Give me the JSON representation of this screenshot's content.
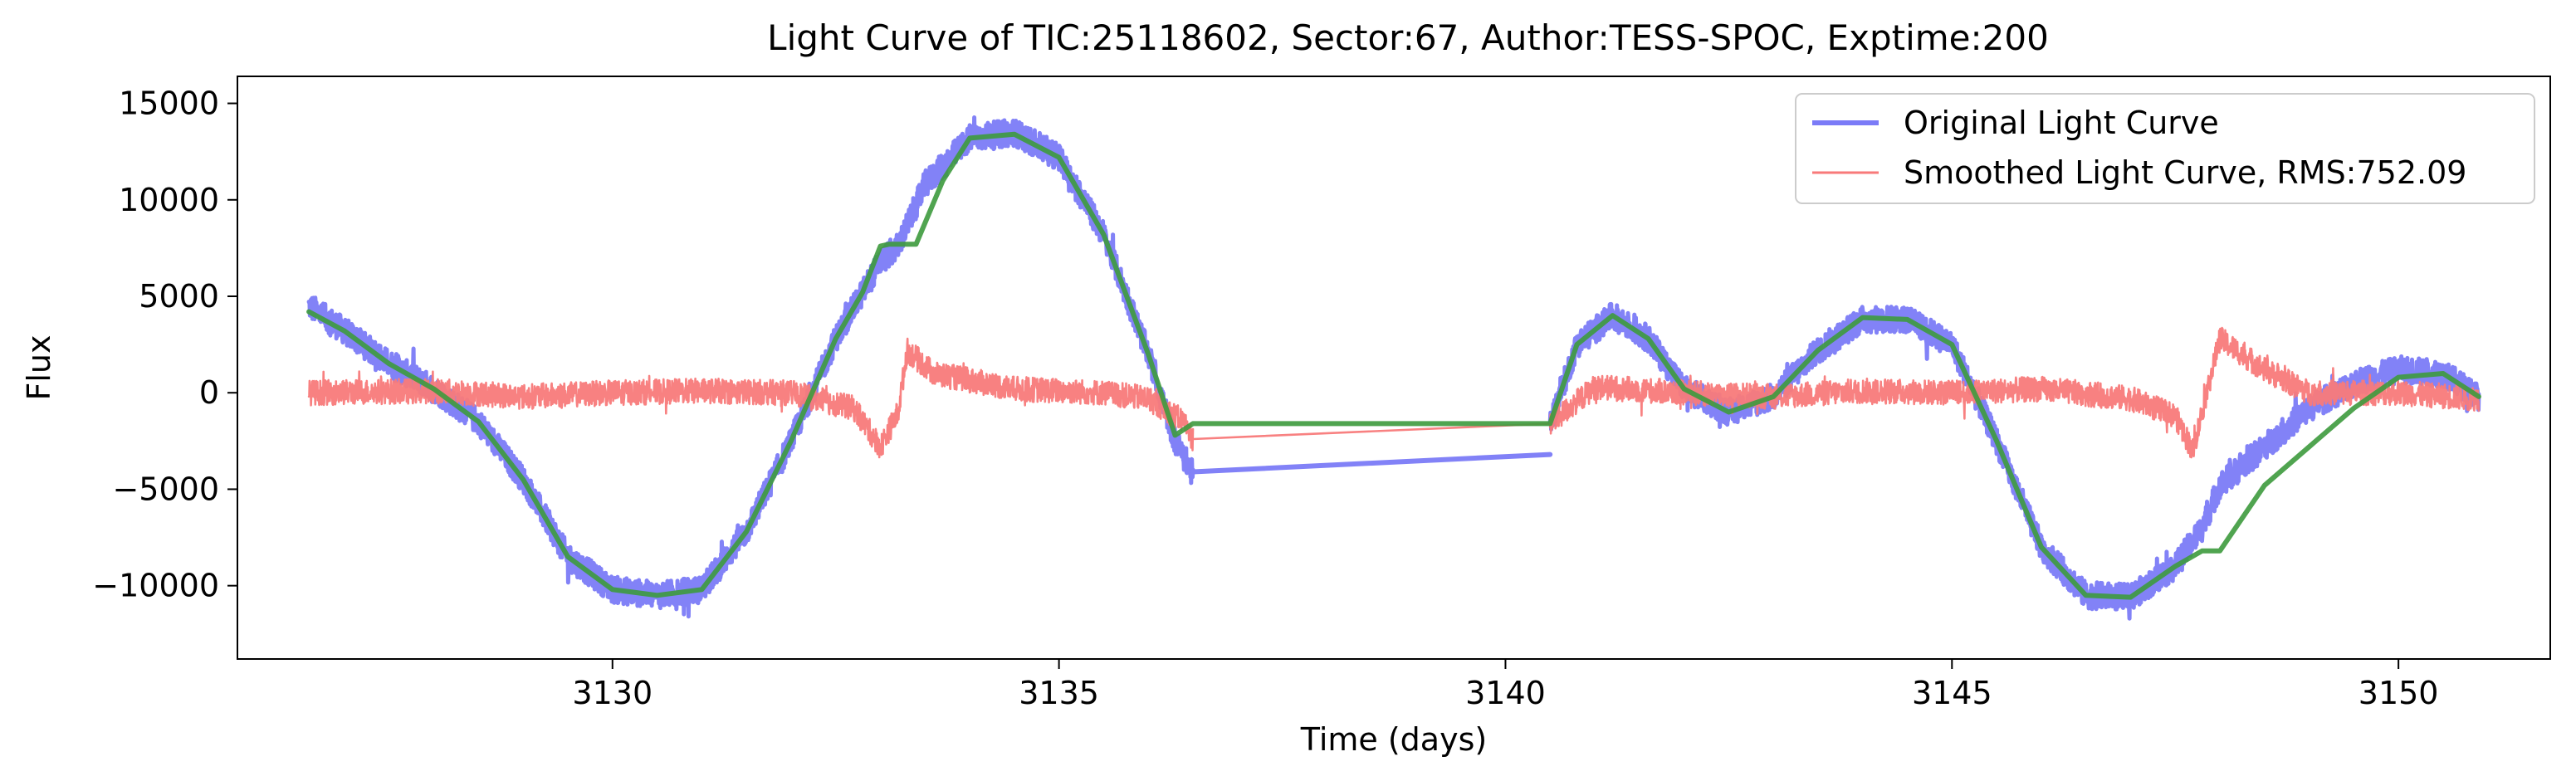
{
  "chart_data": {
    "type": "line",
    "title": "Light Curve of TIC:25118602, Sector:67, Author:TESS-SPOC, Exptime:200",
    "xlabel": "Time (days)",
    "ylabel": "Flux",
    "xlim": [
      3125.8,
      3151.7
    ],
    "ylim": [
      -13800,
      16400
    ],
    "xticks": [
      3130,
      3135,
      3140,
      3145,
      3150
    ],
    "yticks": [
      -10000,
      -5000,
      0,
      5000,
      10000,
      15000
    ],
    "ytick_labels": [
      "−10000",
      "−5000",
      "0",
      "5000",
      "10000",
      "15000"
    ],
    "grid": false,
    "legend_position": "top-right",
    "series": [
      {
        "name": "Original Light Curve",
        "color": "#7b7bf7",
        "noise_amplitude": 700,
        "segments": [
          {
            "x": [
              3126.6,
              3127.0,
              3127.5,
              3128.0,
              3128.5,
              3129.0,
              3129.5,
              3130.0,
              3130.5,
              3131.0,
              3131.5,
              3132.0,
              3132.5,
              3132.8,
              3133.0,
              3133.2,
              3133.5,
              3134.0,
              3134.5,
              3135.0,
              3135.5,
              3136.0,
              3136.3,
              3136.5
            ],
            "y": [
              4500,
              3200,
              1500,
              200,
              -1500,
              -4500,
              -8500,
              -10200,
              -10500,
              -10200,
              -7200,
              -2500,
              2800,
              5200,
              6800,
              7600,
              10800,
              13200,
              13500,
              12200,
              8200,
              2000,
              -2500,
              -4200
            ]
          },
          {
            "x": [
              3136.5,
              3140.5
            ],
            "y": [
              -4100,
              -3200
            ]
          },
          {
            "x": [
              3140.5,
              3140.8,
              3141.2,
              3141.6,
              3142.0,
              3142.5,
              3143.0,
              3143.5,
              3144.0,
              3144.5,
              3145.0,
              3145.5,
              3146.0,
              3146.5,
              3147.0,
              3147.5,
              3147.8,
              3148.0,
              3148.5,
              3149.0,
              3149.5,
              3150.0,
              3150.5,
              3150.9
            ],
            "y": [
              -1600,
              2500,
              4000,
              2800,
              200,
              -1000,
              -200,
              2200,
              3800,
              3800,
              2500,
              -2500,
              -8000,
              -10500,
              -10600,
              -9000,
              -7000,
              -4800,
              -2800,
              -800,
              500,
              1200,
              1000,
              -200
            ]
          }
        ]
      },
      {
        "name": "Smoothed Light Curve, RMS:752.09",
        "color": "#f87a7a",
        "noise_amplitude": 650,
        "segments": [
          {
            "x": [
              3126.6,
              3128.0,
              3129.0,
              3130.0,
              3131.0,
              3132.0,
              3132.7,
              3133.0,
              3133.2,
              3133.3,
              3133.6,
              3134.5,
              3135.5,
              3136.0,
              3136.4,
              3136.5
            ],
            "y": [
              0,
              100,
              -200,
              0,
              100,
              0,
              -800,
              -2800,
              -1000,
              2200,
              1000,
              200,
              0,
              -300,
              -1500,
              -2400
            ]
          },
          {
            "x": [
              3136.5,
              3140.5
            ],
            "y": [
              -2400,
              -1600
            ]
          },
          {
            "x": [
              3140.5,
              3141.0,
              3142.0,
              3143.0,
              3144.0,
              3145.0,
              3146.0,
              3147.0,
              3147.5,
              3147.7,
              3147.8,
              3148.0,
              3148.5,
              3149.0,
              3150.0,
              3150.9
            ],
            "y": [
              -1600,
              300,
              0,
              -200,
              100,
              0,
              200,
              -300,
              -1200,
              -3000,
              -1000,
              2800,
              1200,
              0,
              0,
              -300
            ]
          }
        ]
      },
      {
        "name": "",
        "color": "#3d9a3d",
        "noise_amplitude": 0,
        "segments": [
          {
            "x": [
              3126.6,
              3127.0,
              3127.5,
              3128.0,
              3128.5,
              3129.0,
              3129.5,
              3130.0,
              3130.5,
              3131.0,
              3131.5,
              3132.0,
              3132.5,
              3132.8,
              3133.0,
              3133.1,
              3133.4,
              3133.7,
              3134.0,
              3134.5,
              3135.0,
              3135.5,
              3136.0,
              3136.3,
              3136.5,
              3140.5,
              3140.8,
              3141.2,
              3141.6,
              3142.0,
              3142.5,
              3143.0,
              3143.5,
              3144.0,
              3144.5,
              3145.0,
              3145.5,
              3146.0,
              3146.5,
              3147.0,
              3147.5,
              3147.8,
              3148.0,
              3148.5,
              3149.0,
              3149.5,
              3150.0,
              3150.5,
              3150.9
            ],
            "y": [
              4200,
              3200,
              1500,
              200,
              -1500,
              -4500,
              -8500,
              -10200,
              -10500,
              -10200,
              -7200,
              -2500,
              2800,
              5200,
              7600,
              7700,
              7700,
              11000,
              13200,
              13400,
              12200,
              8200,
              2000,
              -2200,
              -1600,
              -1600,
              2500,
              4000,
              2800,
              200,
              -1000,
              -200,
              2200,
              3900,
              3800,
              2500,
              -2500,
              -8000,
              -10500,
              -10600,
              -9000,
              -8200,
              -8200,
              -4800,
              -2800,
              -800,
              800,
              1000,
              -200
            ]
          }
        ]
      }
    ]
  }
}
